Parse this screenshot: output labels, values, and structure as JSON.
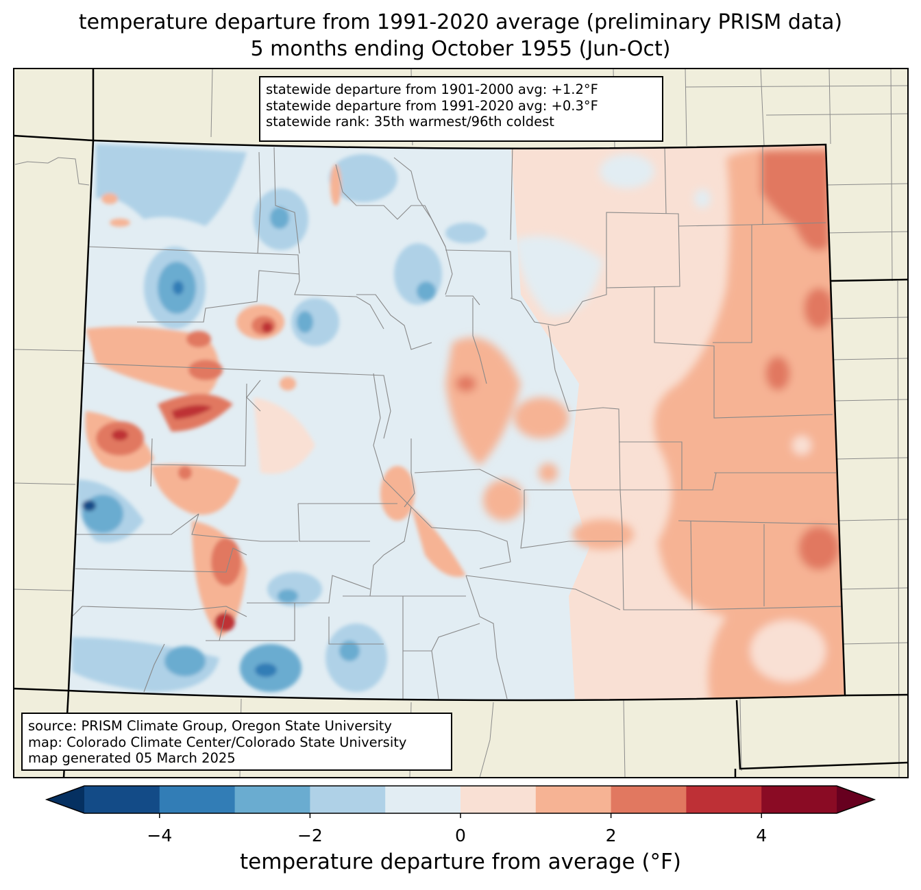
{
  "title": {
    "line1": "temperature departure from 1991-2020 average (preliminary PRISM data)",
    "line2": "5 months ending October 1955 (Jun-Oct)"
  },
  "stats_box": {
    "line1": "statewide departure from 1901-2000 avg: +1.2°F",
    "line2": "statewide departure from 1991-2020 avg: +0.3°F",
    "line3": "statewide rank: 35th warmest/96th coldest"
  },
  "source_box": {
    "line1": "source: PRISM Climate Group, Oregon State University",
    "line2": "map: Colorado Climate Center/Colorado State University",
    "line3": "map generated 05 March 2025"
  },
  "colorbar": {
    "label": "temperature departure from average (°F)",
    "range": [
      -5,
      5
    ],
    "step": 1,
    "extend": "both",
    "ticks": [
      {
        "value": -4,
        "label": "−4"
      },
      {
        "value": -2,
        "label": "−2"
      },
      {
        "value": 0,
        "label": "0"
      },
      {
        "value": 2,
        "label": "2"
      },
      {
        "value": 4,
        "label": "4"
      }
    ],
    "colors": [
      "#053061",
      "#134b87",
      "#327db6",
      "#6aacd0",
      "#afd1e7",
      "#e2edf3",
      "#f9e0d4",
      "#f6b394",
      "#e17860",
      "#be3036",
      "#8a0b24",
      "#67001f"
    ]
  },
  "map": {
    "state": "Colorado",
    "background_color": "#f0eedc",
    "pattern": {
      "west_half": "mixed, mostly slightly below average with patches of warmth",
      "east_half": "above average, warmest near the eastern border"
    }
  }
}
